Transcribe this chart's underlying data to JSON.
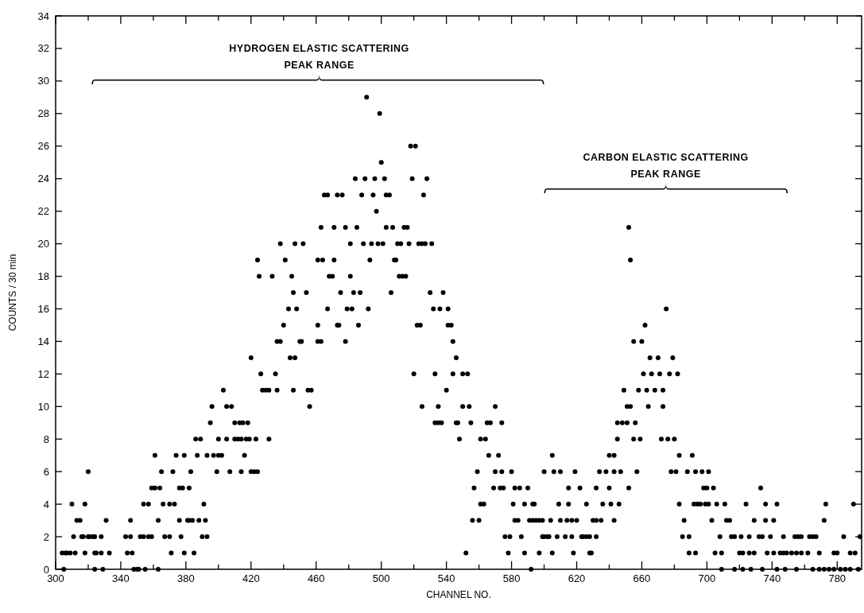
{
  "chart_data": {
    "type": "scatter",
    "xlabel": "CHANNEL NO.",
    "ylabel": "COUNTS / 30 min",
    "xlim": [
      300,
      795
    ],
    "ylim": [
      0,
      34
    ],
    "xticks": [
      300,
      {
        "value": 320,
        "label": null
      },
      340,
      {
        "value": 360,
        "label": null
      },
      380,
      {
        "value": 400,
        "label": null
      },
      420,
      {
        "value": 440,
        "label": null
      },
      460,
      {
        "value": 480,
        "label": null
      },
      500,
      {
        "value": 520,
        "label": null
      },
      540,
      {
        "value": 560,
        "label": null
      },
      580,
      {
        "value": 600,
        "label": null
      },
      620,
      {
        "value": 640,
        "label": null
      },
      660,
      {
        "value": 680,
        "label": null
      },
      700,
      {
        "value": 720,
        "label": null
      },
      740,
      {
        "value": 760,
        "label": null
      },
      780
    ],
    "yticks": [
      0,
      2,
      4,
      6,
      8,
      10,
      12,
      14,
      16,
      18,
      20,
      22,
      24,
      26,
      28,
      30,
      32,
      34
    ],
    "grid": false,
    "marker": "circle",
    "annotations": [
      "HYDROGEN ELASTIC SCATTERING\nPEAK RANGE",
      "CARBON ELASTIC SCATTERING\nPEAK RANGE"
    ],
    "series": [
      {
        "color": "#000000",
        "x": [
          305,
          324,
          329,
          348,
          350,
          351,
          355,
          363,
          592,
          709,
          717,
          722,
          727,
          734,
          743,
          748,
          755,
          765,
          769,
          772,
          775,
          778,
          782,
          785,
          788,
          793,
          304,
          306,
          307,
          309,
          312,
          318,
          324,
          325,
          328,
          333,
          344,
          347,
          371,
          379,
          385,
          552,
          578,
          588,
          597,
          605,
          618,
          628,
          629,
          689,
          693,
          705,
          709,
          720,
          722,
          726,
          729,
          737,
          741,
          745,
          747,
          749,
          752,
          755,
          758,
          762,
          769,
          778,
          780,
          788,
          791,
          311,
          316,
          317,
          320,
          321,
          323,
          324,
          328,
          343,
          346,
          352,
          354,
          357,
          359,
          367,
          370,
          377,
          390,
          393,
          576,
          579,
          586,
          599,
          600,
          602,
          603,
          608,
          613,
          617,
          623,
          624,
          626,
          628,
          632,
          685,
          689,
          708,
          715,
          717,
          721,
          726,
          732,
          734,
          739,
          747,
          754,
          756,
          758,
          763,
          765,
          767,
          784,
          794,
          313,
          315,
          331,
          346,
          363,
          376,
          381,
          382,
          384,
          388,
          392,
          556,
          560,
          582,
          584,
          591,
          593,
          595,
          597,
          599,
          604,
          610,
          614,
          617,
          620,
          630,
          632,
          635,
          643,
          686,
          703,
          712,
          714,
          729,
          736,
          741,
          772,
          310,
          318,
          354,
          357,
          366,
          370,
          373,
          391,
          561,
          563,
          581,
          588,
          593,
          594,
          609,
          615,
          626,
          636,
          641,
          646,
          683,
          692,
          694,
          696,
          699,
          701,
          706,
          711,
          724,
          736,
          743,
          773,
          790,
          359,
          361,
          364,
          376,
          378,
          382,
          557,
          569,
          573,
          575,
          582,
          585,
          590,
          615,
          622,
          632,
          640,
          652,
          698,
          700,
          704,
          733,
          320,
          365,
          372,
          383,
          399,
          407,
          414,
          420,
          422,
          424,
          559,
          570,
          574,
          580,
          600,
          606,
          610,
          619,
          634,
          638,
          643,
          647,
          657,
          678,
          681,
          688,
          693,
          697,
          701,
          361,
          374,
          379,
          387,
          393,
          397,
          400,
          402,
          416,
          566,
          572,
          605,
          640,
          643,
          683,
          691,
          386,
          389,
          400,
          405,
          410,
          412,
          414,
          417,
          419,
          423,
          431,
          548,
          561,
          564,
          645,
          655,
          659,
          672,
          676,
          680,
          395,
          410,
          413,
          415,
          418,
          533,
          535,
          537,
          546,
          547,
          555,
          565,
          567,
          574,
          645,
          648,
          651,
          656,
          396,
          405,
          408,
          456,
          525,
          535,
          550,
          554,
          570,
          651,
          653,
          664,
          673,
          403,
          427,
          429,
          431,
          436,
          446,
          455,
          457,
          540,
          649,
          658,
          663,
          668,
          673,
          426,
          435,
          520,
          533,
          544,
          550,
          553,
          661,
          666,
          671,
          677,
          682,
          420,
          447,
          444,
          546,
          665,
          670,
          679,
          436,
          438,
          451,
          450,
          461,
          463,
          478,
          544,
          655,
          660,
          440,
          461,
          473,
          474,
          486,
          522,
          524,
          541,
          543,
          662,
          443,
          448,
          467,
          479,
          482,
          492,
          532,
          536,
          541,
          675,
          446,
          454,
          475,
          483,
          487,
          506,
          530,
          538,
          425,
          433,
          445,
          468,
          470,
          481,
          511,
          513,
          515,
          424,
          441,
          461,
          464,
          471,
          493,
          508,
          509,
          653,
          438,
          447,
          452,
          481,
          489,
          494,
          498,
          501,
          510,
          512,
          517,
          523,
          525,
          527,
          531,
          463,
          471,
          478,
          485,
          503,
          507,
          514,
          516,
          652,
          497,
          465,
          467,
          473,
          476,
          488,
          495,
          503,
          505,
          526,
          484,
          490,
          496,
          502,
          519,
          528,
          500,
          518,
          521,
          499,
          491
        ],
        "values": [
          0,
          0,
          0,
          0,
          0,
          0,
          0,
          0,
          0,
          0,
          0,
          0,
          0,
          0,
          0,
          0,
          0,
          0,
          0,
          0,
          0,
          0,
          0,
          0,
          0,
          0,
          1,
          1,
          1,
          1,
          1,
          1,
          1,
          1,
          1,
          1,
          1,
          1,
          1,
          1,
          1,
          1,
          1,
          1,
          1,
          1,
          1,
          1,
          1,
          1,
          1,
          1,
          1,
          1,
          1,
          1,
          1,
          1,
          1,
          1,
          1,
          1,
          1,
          1,
          1,
          1,
          1,
          1,
          1,
          1,
          1,
          2,
          2,
          2,
          2,
          2,
          2,
          2,
          2,
          2,
          2,
          2,
          2,
          2,
          2,
          2,
          2,
          2,
          2,
          2,
          2,
          2,
          2,
          2,
          2,
          2,
          2,
          2,
          2,
          2,
          2,
          2,
          2,
          2,
          2,
          2,
          2,
          2,
          2,
          2,
          2,
          2,
          2,
          2,
          2,
          2,
          2,
          2,
          2,
          2,
          2,
          2,
          2,
          2,
          3,
          3,
          3,
          3,
          3,
          3,
          3,
          3,
          3,
          3,
          3,
          3,
          3,
          3,
          3,
          3,
          3,
          3,
          3,
          3,
          3,
          3,
          3,
          3,
          3,
          3,
          3,
          3,
          3,
          3,
          3,
          3,
          3,
          3,
          3,
          3,
          3,
          4,
          4,
          4,
          4,
          4,
          4,
          4,
          4,
          4,
          4,
          4,
          4,
          4,
          4,
          4,
          4,
          4,
          4,
          4,
          4,
          4,
          4,
          4,
          4,
          4,
          4,
          4,
          4,
          4,
          4,
          4,
          4,
          4,
          5,
          5,
          5,
          5,
          5,
          5,
          5,
          5,
          5,
          5,
          5,
          5,
          5,
          5,
          5,
          5,
          5,
          5,
          5,
          5,
          5,
          5,
          6,
          6,
          6,
          6,
          6,
          6,
          6,
          6,
          6,
          6,
          6,
          6,
          6,
          6,
          6,
          6,
          6,
          6,
          6,
          6,
          6,
          6,
          6,
          6,
          6,
          6,
          6,
          6,
          6,
          7,
          7,
          7,
          7,
          7,
          7,
          7,
          7,
          7,
          7,
          7,
          7,
          7,
          7,
          7,
          7,
          8,
          8,
          8,
          8,
          8,
          8,
          8,
          8,
          8,
          8,
          8,
          8,
          8,
          8,
          8,
          8,
          8,
          8,
          8,
          8,
          9,
          9,
          9,
          9,
          9,
          9,
          9,
          9,
          9,
          9,
          9,
          9,
          9,
          9,
          9,
          9,
          9,
          9,
          10,
          10,
          10,
          10,
          10,
          10,
          10,
          10,
          10,
          10,
          10,
          10,
          10,
          11,
          11,
          11,
          11,
          11,
          11,
          11,
          11,
          11,
          11,
          11,
          11,
          11,
          11,
          12,
          12,
          12,
          12,
          12,
          12,
          12,
          12,
          12,
          12,
          12,
          12,
          13,
          13,
          13,
          13,
          13,
          13,
          13,
          14,
          14,
          14,
          14,
          14,
          14,
          14,
          14,
          14,
          14,
          15,
          15,
          15,
          15,
          15,
          15,
          15,
          15,
          15,
          15,
          16,
          16,
          16,
          16,
          16,
          16,
          16,
          16,
          16,
          16,
          17,
          17,
          17,
          17,
          17,
          17,
          17,
          17,
          18,
          18,
          18,
          18,
          18,
          18,
          18,
          18,
          18,
          19,
          19,
          19,
          19,
          19,
          19,
          19,
          19,
          19,
          20,
          20,
          20,
          20,
          20,
          20,
          20,
          20,
          20,
          20,
          20,
          20,
          20,
          20,
          20,
          21,
          21,
          21,
          21,
          21,
          21,
          21,
          21,
          21,
          22,
          23,
          23,
          23,
          23,
          23,
          23,
          23,
          23,
          23,
          24,
          24,
          24,
          24,
          24,
          24,
          25,
          26,
          26,
          28,
          29
        ]
      }
    ]
  }
}
